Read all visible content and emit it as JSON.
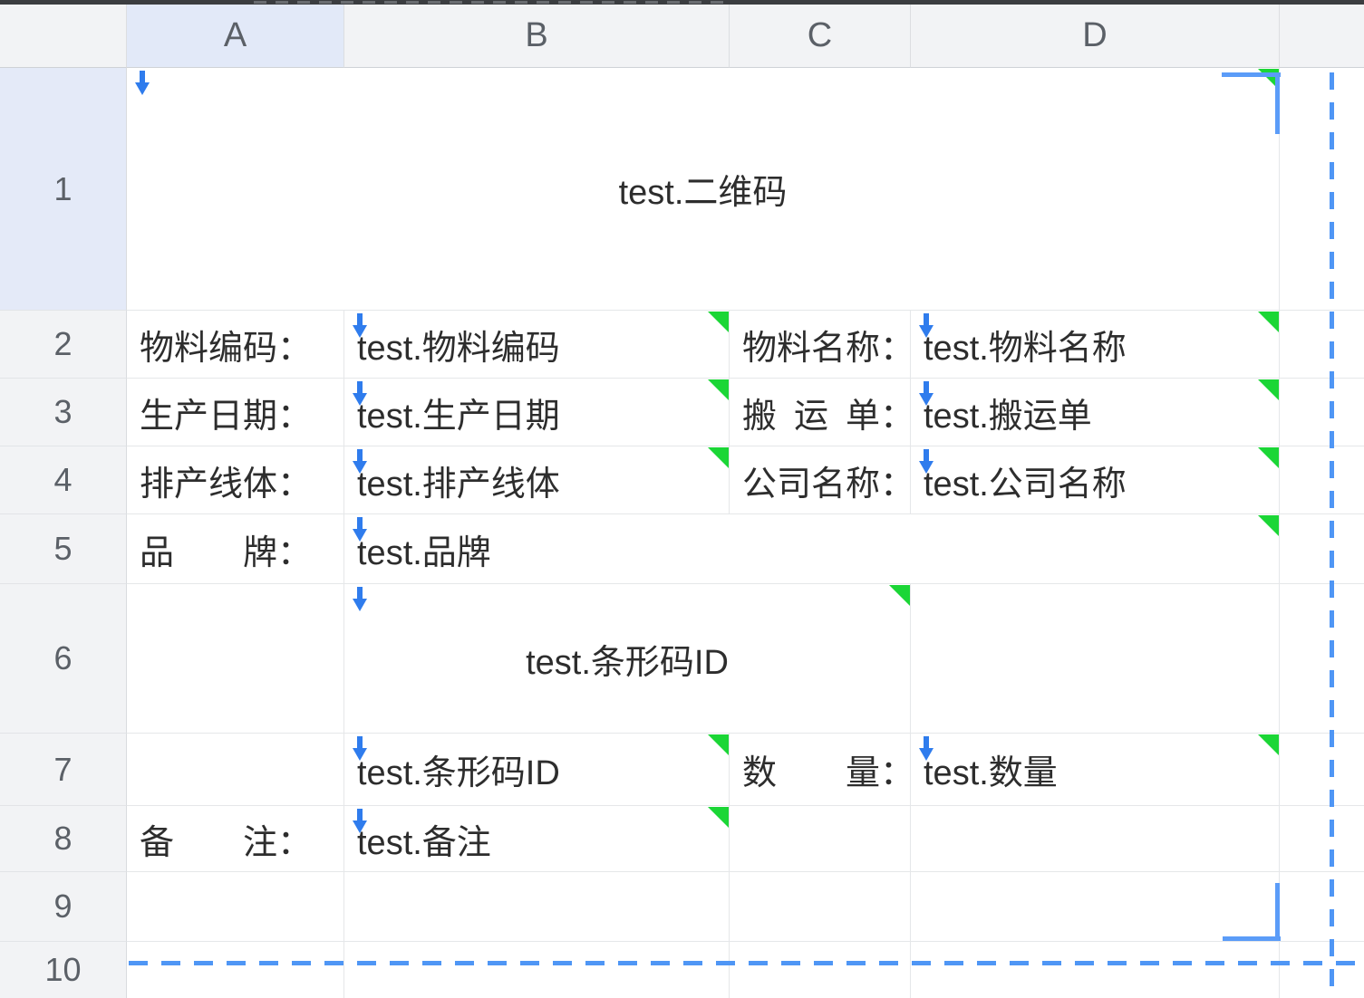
{
  "column_headers": [
    "A",
    "B",
    "C",
    "D",
    ""
  ],
  "row_headers": [
    "1",
    "2",
    "3",
    "4",
    "5",
    "6",
    "7",
    "8",
    "9",
    "10"
  ],
  "cells": {
    "qr": "test.二维码",
    "r2": {
      "a": "物料编码：",
      "b": "test.物料编码",
      "c": "物料名称：",
      "d": "test.物料名称"
    },
    "r3": {
      "a": "生产日期：",
      "b": "test.生产日期",
      "c": "搬 运 单：",
      "d": "test.搬运单"
    },
    "r4": {
      "a": "排产线体：",
      "b": "test.排产线体",
      "c": "公司名称：",
      "d": "test.公司名称"
    },
    "r5": {
      "a": "品　　牌：",
      "b": "test.品牌"
    },
    "r6": {
      "b": "test.条形码ID"
    },
    "r7": {
      "b": "test.条形码ID",
      "c": "数　　量：",
      "d": "test.数量"
    },
    "r8": {
      "a": "备　　注：",
      "b": "test.备注"
    }
  },
  "icons": {
    "spill_arrow": "blue-down-arrow",
    "comment_indicator": "green-corner-triangle"
  },
  "colors": {
    "spill_arrow_blue": "#2f7ced",
    "comment_green": "#1bd636",
    "page_break_blue": "#4f96f5",
    "print_area_corner_blue": "#5b9cf8",
    "header_bg": "#f2f3f5",
    "header_selected_bg": "#e2e9f8",
    "gridline": "#e5e7e9"
  }
}
